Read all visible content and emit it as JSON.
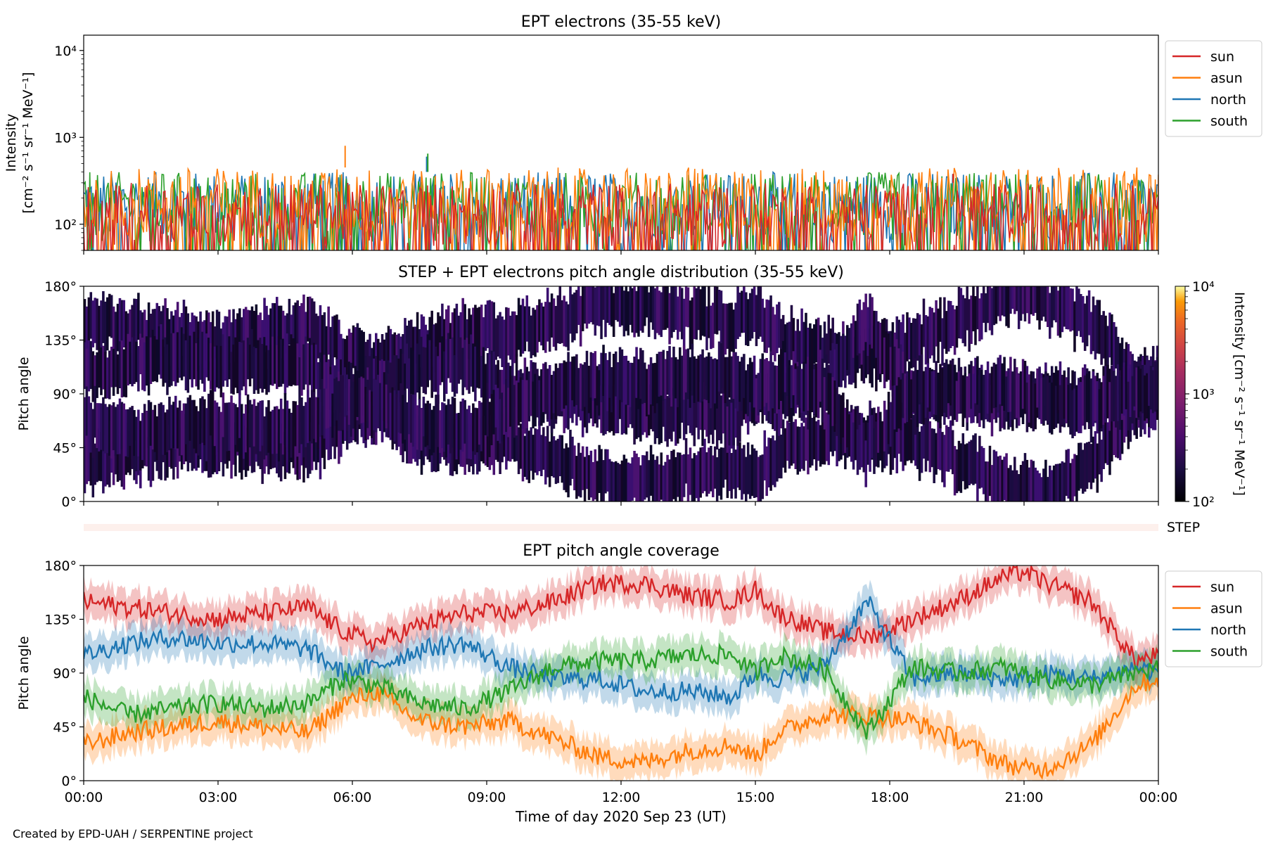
{
  "footer": {
    "credit": "Created by EPD-UAH / SERPENTINE project"
  },
  "colors": {
    "sun": "#d62728",
    "asun": "#ff7f0e",
    "north": "#1f77b4",
    "south": "#2ca02c",
    "step_strip": "#fdf0ec"
  },
  "chart_data": [
    {
      "type": "line",
      "title": "EPT electrons (35-55 keV)",
      "ylabel_line1": "Intensity",
      "ylabel_line2": "[cm⁻² s⁻¹ sr⁻¹ MeV⁻¹]",
      "yscale": "log",
      "ylim": [
        50,
        15000
      ],
      "ytick_labels": [
        "10²",
        "10³",
        "10⁴"
      ],
      "ytick_values": [
        100,
        1000,
        10000
      ],
      "xlim": [
        "2020-09-23T00:00",
        "2020-09-24T00:00"
      ],
      "legend_position": "outside-right",
      "series": [
        {
          "name": "sun",
          "color": "#d62728",
          "typical_range": [
            50,
            300
          ],
          "peak": 380
        },
        {
          "name": "asun",
          "color": "#ff7f0e",
          "typical_range": [
            60,
            450
          ],
          "peak": 800
        },
        {
          "name": "north",
          "color": "#1f77b4",
          "typical_range": [
            60,
            400
          ],
          "peak": 600
        },
        {
          "name": "south",
          "color": "#2ca02c",
          "typical_range": [
            60,
            400
          ],
          "peak": 650
        }
      ]
    },
    {
      "type": "heatmap",
      "title": "STEP + EPT electrons pitch angle distribution (35-55 keV)",
      "ylabel": "Pitch angle",
      "ylim": [
        0,
        180
      ],
      "ytick_labels": [
        "0°",
        "45°",
        "90°",
        "135°",
        "180°"
      ],
      "ytick_values": [
        0,
        45,
        90,
        135,
        180
      ],
      "colorbar": {
        "label": "Intensity [cm⁻² s⁻¹ sr⁻¹ MeV⁻¹]",
        "scale": "log",
        "range": [
          100,
          10000
        ],
        "tick_labels": [
          "10²",
          "10³",
          "10⁴"
        ],
        "colormap": "inferno"
      },
      "step_label": "STEP"
    },
    {
      "type": "line",
      "title": "EPT pitch angle coverage",
      "ylabel": "Pitch angle",
      "ylim": [
        0,
        180
      ],
      "ytick_labels": [
        "0°",
        "45°",
        "90°",
        "135°",
        "180°"
      ],
      "ytick_values": [
        0,
        45,
        90,
        135,
        180
      ],
      "xlabel": "Time of day 2020 Sep 23 (UT)",
      "xtick_labels": [
        "00:00",
        "03:00",
        "06:00",
        "09:00",
        "12:00",
        "15:00",
        "18:00",
        "21:00",
        "00:00"
      ],
      "xtick_hours": [
        0,
        3,
        6,
        9,
        12,
        15,
        18,
        21,
        24
      ],
      "legend_position": "outside-right",
      "series": [
        {
          "name": "sun",
          "color": "#d62728",
          "x_hours": [
            0,
            1,
            2,
            3,
            4,
            5,
            5.8,
            6.5,
            7.5,
            8.5,
            9.5,
            10.5,
            11.5,
            12.5,
            13.5,
            14.5,
            15,
            15.5,
            16.5,
            17.5,
            18.5,
            19.5,
            20.5,
            21,
            21.5,
            22.5,
            23,
            23.5,
            24
          ],
          "values": [
            150,
            145,
            140,
            135,
            140,
            145,
            125,
            115,
            130,
            140,
            140,
            150,
            165,
            165,
            155,
            150,
            160,
            140,
            125,
            120,
            135,
            150,
            170,
            175,
            165,
            150,
            125,
            100,
            105
          ]
        },
        {
          "name": "asun",
          "color": "#ff7f0e",
          "x_hours": [
            0,
            1,
            2,
            3,
            4,
            5,
            5.8,
            6.5,
            7.5,
            8.5,
            9.5,
            10.5,
            11.5,
            12.5,
            13.5,
            14.5,
            15,
            15.5,
            16.5,
            17.5,
            18.5,
            19.5,
            20.5,
            21,
            21.5,
            22.5,
            23,
            23.5,
            24
          ],
          "values": [
            30,
            40,
            45,
            50,
            45,
            40,
            65,
            75,
            50,
            45,
            50,
            35,
            20,
            15,
            25,
            30,
            20,
            40,
            55,
            55,
            50,
            35,
            15,
            10,
            10,
            30,
            55,
            80,
            85
          ]
        },
        {
          "name": "north",
          "color": "#1f77b4",
          "x_hours": [
            0,
            1,
            2,
            3,
            4,
            5,
            5.8,
            6.5,
            7.5,
            8.5,
            9.5,
            10.5,
            11.5,
            12.5,
            13.5,
            14.5,
            15,
            15.5,
            16.5,
            17.5,
            18.5,
            19.5,
            20.5,
            21,
            21.5,
            22.5,
            23,
            23.5,
            24
          ],
          "values": [
            105,
            115,
            120,
            115,
            115,
            110,
            90,
            95,
            110,
            115,
            95,
            85,
            85,
            75,
            75,
            70,
            90,
            85,
            95,
            150,
            85,
            90,
            85,
            85,
            90,
            85,
            90,
            95,
            90
          ]
        },
        {
          "name": "south",
          "color": "#2ca02c",
          "x_hours": [
            0,
            1,
            2,
            3,
            4,
            5,
            5.8,
            6.5,
            7.5,
            8.5,
            9.5,
            10.5,
            11.5,
            12.5,
            13.5,
            14.5,
            15,
            15.5,
            16.5,
            17.5,
            18.5,
            19.5,
            20.5,
            21,
            21.5,
            22.5,
            23,
            23.5,
            24
          ],
          "values": [
            70,
            55,
            60,
            65,
            60,
            65,
            85,
            80,
            65,
            60,
            75,
            95,
            100,
            100,
            105,
            105,
            90,
            105,
            95,
            40,
            95,
            90,
            95,
            90,
            85,
            80,
            85,
            90,
            95
          ]
        }
      ]
    }
  ]
}
